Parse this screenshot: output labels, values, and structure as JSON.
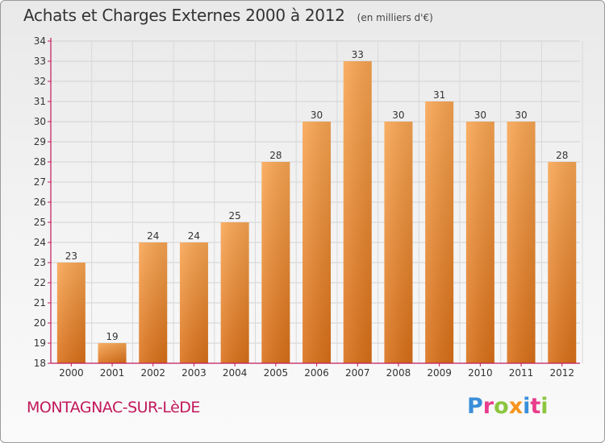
{
  "title": "Achats et Charges Externes 2000 à 2012",
  "unit_note": "(en milliers d'€)",
  "commune": "MONTAGNAC-SUR-LèDE",
  "logo": {
    "text": "Proxiti",
    "colors": [
      "#3a8fd9",
      "#e83e8c",
      "#8cc63f",
      "#f7941d"
    ]
  },
  "chart_data": {
    "type": "bar",
    "categories": [
      "2000",
      "2001",
      "2002",
      "2003",
      "2004",
      "2005",
      "2006",
      "2007",
      "2008",
      "2009",
      "2010",
      "2011",
      "2012"
    ],
    "values": [
      23,
      19,
      24,
      24,
      25,
      28,
      30,
      33,
      30,
      31,
      30,
      30,
      28
    ],
    "ylim": [
      18,
      34
    ],
    "yticks": [
      18,
      19,
      20,
      21,
      22,
      23,
      24,
      25,
      26,
      27,
      28,
      29,
      30,
      31,
      32,
      33,
      34
    ],
    "grid": true,
    "bar_color_top": "#f8a552",
    "bar_color_bottom": "#d96f17",
    "axis_color": "#c2185b"
  }
}
